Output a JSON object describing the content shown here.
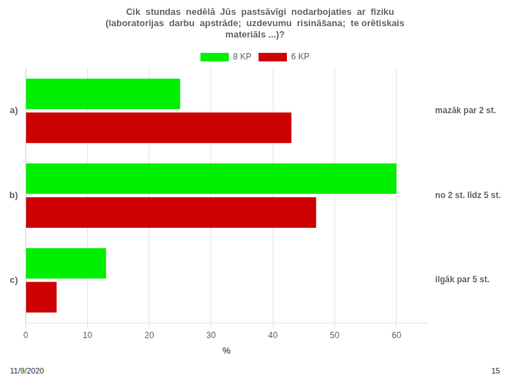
{
  "chart_data": {
    "type": "bar",
    "orientation": "horizontal",
    "title": [
      "    Cik  stundas  nedēlā  Jūs  pastsāvīgi  nodarbojaties  ar  fiziku",
      "(laboratorijas  darbu  apstrāde;  uzdevumu  risināšana;  te orētiskais",
      "materiāls ...)?"
    ],
    "categories": [
      "c)",
      "b)",
      "a)"
    ],
    "series": [
      {
        "name": "8 KP",
        "color": "#00ee00",
        "values": [
          13,
          60,
          25
        ]
      },
      {
        "name": "6 KP",
        "color": "#cc0000",
        "values": [
          5,
          47,
          43
        ]
      }
    ],
    "xlabel": "%",
    "xlim": [
      0,
      65
    ],
    "xticks": [
      0,
      10,
      20,
      30,
      40,
      50,
      60
    ],
    "grid": true,
    "legend": "top",
    "annotations": [
      {
        "category": "c)",
        "text": "ilgāk par 5 st."
      },
      {
        "category": "b)",
        "text": "no 2 st. līdz 5 st."
      },
      {
        "category": "a)",
        "text": "mazāk par 2 st."
      },
      {
        "text": "11/9/2020"
      },
      {
        "text": "15"
      }
    ]
  }
}
